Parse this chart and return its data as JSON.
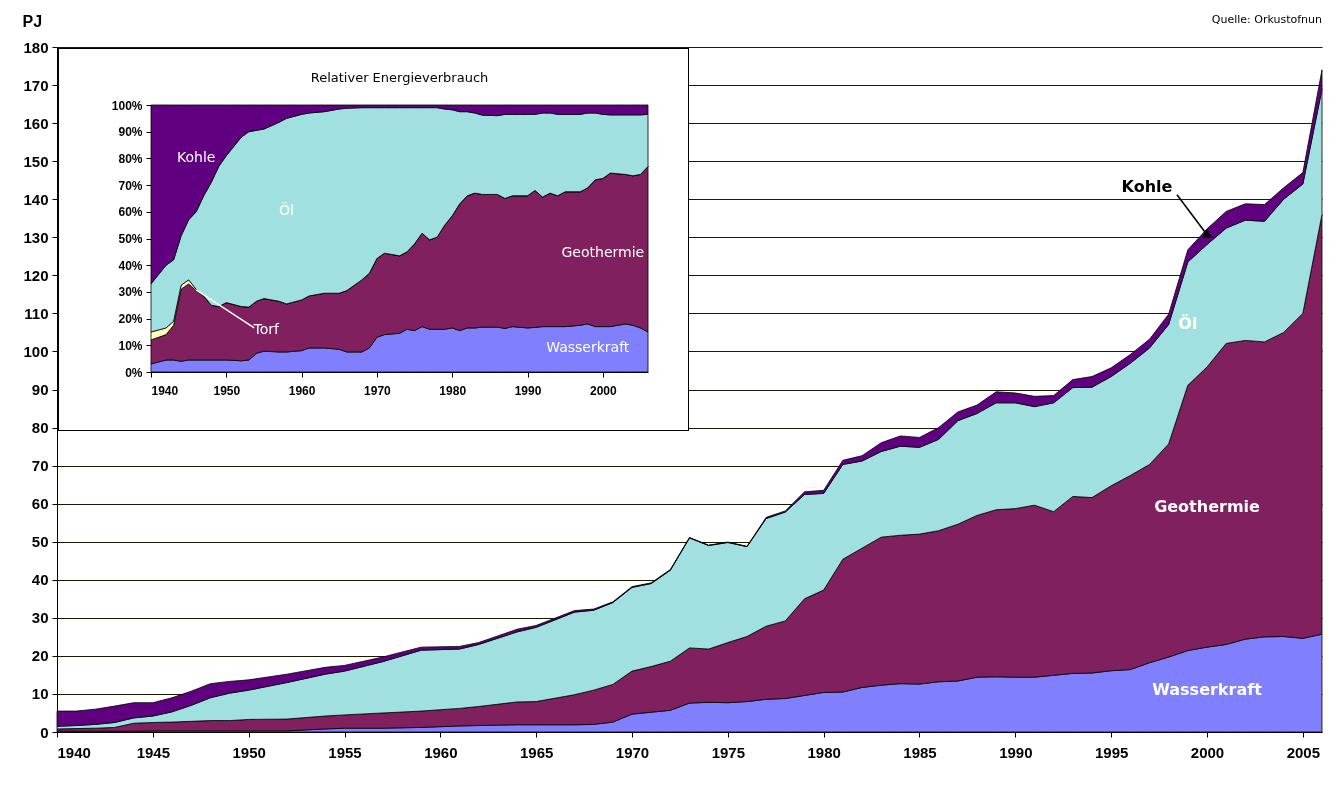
{
  "chart_data": [
    {
      "type": "area",
      "stacked": true,
      "ylabel": "PJ",
      "grid": "y",
      "annotations": [
        "Quelle: Orkustofnun"
      ],
      "x": [
        1940,
        1941,
        1942,
        1943,
        1944,
        1945,
        1946,
        1947,
        1948,
        1949,
        1950,
        1952,
        1954,
        1955,
        1957,
        1959,
        1961,
        1962,
        1964,
        1965,
        1967,
        1968,
        1969,
        1970,
        1971,
        1972,
        1973,
        1974,
        1975,
        1976,
        1977,
        1978,
        1979,
        1980,
        1981,
        1982,
        1983,
        1984,
        1985,
        1986,
        1987,
        1988,
        1989,
        1990,
        1991,
        1992,
        1993,
        1994,
        1995,
        1996,
        1997,
        1998,
        1999,
        2000,
        2001,
        2002,
        2003,
        2004,
        2005,
        2006
      ],
      "xlim": [
        1940,
        2006
      ],
      "xticks": [
        1940,
        1945,
        1950,
        1955,
        1960,
        1965,
        1970,
        1975,
        1980,
        1985,
        1990,
        1995,
        2000,
        2005
      ],
      "ylim": [
        0,
        180
      ],
      "yticks": [
        0,
        10,
        20,
        30,
        40,
        50,
        60,
        70,
        80,
        90,
        100,
        110,
        120,
        130,
        140,
        150,
        160,
        170,
        180
      ],
      "series": [
        {
          "name": "Wasserkraft",
          "color": "#8080ff",
          "values": [
            0.2,
            0.2,
            0.2,
            0.2,
            0.2,
            0.3,
            0.3,
            0.3,
            0.3,
            0.3,
            0.3,
            0.3,
            0.8,
            1.0,
            1.0,
            1.2,
            1.6,
            1.7,
            1.9,
            1.9,
            1.9,
            2.0,
            2.6,
            4.7,
            5.2,
            5.7,
            7.6,
            7.8,
            7.7,
            8.0,
            8.6,
            8.8,
            9.6,
            10.4,
            10.5,
            11.7,
            12.3,
            12.7,
            12.6,
            13.2,
            13.4,
            14.4,
            14.5,
            14.4,
            14.4,
            14.9,
            15.4,
            15.5,
            16.1,
            16.4,
            18.2,
            19.7,
            21.4,
            22.3,
            23.0,
            24.4,
            25.0,
            25.1,
            24.6,
            25.7
          ]
        },
        {
          "name": "Geothermie",
          "color": "#80205f",
          "values": [
            0.6,
            0.7,
            0.8,
            1.0,
            2.1,
            2.2,
            2.3,
            2.5,
            2.7,
            2.7,
            3.0,
            3.1,
            3.4,
            3.5,
            4.0,
            4.3,
            4.6,
            5.0,
            6.0,
            6.1,
            7.9,
            9.0,
            9.9,
            11.3,
            12.0,
            12.9,
            14.5,
            14.0,
            15.8,
            17.1,
            19.2,
            20.4,
            25.4,
            26.9,
            34.9,
            36.6,
            38.9,
            39.0,
            39.4,
            39.7,
            41.2,
            42.5,
            43.9,
            44.3,
            45.2,
            43.0,
            46.5,
            46.1,
            48.6,
            51.0,
            52.1,
            56.0,
            69.7,
            73.6,
            79.1,
            78.5,
            77.5,
            79.9,
            85.4,
            110.3
          ]
        },
        {
          "name": "Öl",
          "color": "#a0e0e0",
          "values": [
            0.7,
            0.8,
            1.0,
            1.3,
            1.4,
            1.7,
            2.7,
            4.2,
            6.0,
            7.2,
            7.7,
            9.6,
            11.0,
            11.5,
            13.5,
            16.0,
            15.6,
            16.3,
            18.4,
            19.5,
            21.7,
            21.0,
            21.5,
            22.0,
            21.8,
            23.9,
            28.9,
            27.2,
            26.3,
            23.6,
            28.3,
            28.6,
            27.4,
            25.4,
            24.9,
            22.9,
            22.5,
            23.4,
            22.8,
            24.0,
            27.2,
            26.8,
            28.1,
            27.8,
            25.9,
            28.6,
            28.6,
            29.0,
            28.7,
            29.5,
            30.6,
            31.4,
            32.4,
            32.2,
            30.3,
            31.6,
            31.7,
            35.0,
            34.0,
            33.0
          ]
        },
        {
          "name": "Kohle",
          "color": "#600080",
          "values": [
            4.0,
            3.8,
            4.0,
            4.3,
            4.0,
            3.5,
            3.7,
            3.7,
            3.7,
            3.1,
            2.7,
            2.2,
            1.8,
            1.5,
            1.2,
            0.8,
            0.7,
            0.5,
            0.7,
            0.5,
            0.4,
            0.3,
            0.2,
            0.2,
            0.2,
            0.2,
            0.1,
            0.1,
            0.1,
            0.1,
            0.3,
            0.3,
            0.7,
            0.8,
            1.1,
            1.4,
            2.3,
            2.7,
            2.6,
            3.1,
            2.3,
            2.2,
            2.9,
            2.6,
            2.7,
            1.9,
            2.1,
            2.8,
            2.3,
            2.3,
            2.3,
            2.7,
            3.2,
            4.1,
            4.4,
            4.3,
            4.4,
            3.0,
            3.0,
            5.0
          ]
        }
      ]
    },
    {
      "type": "area",
      "stacked": true,
      "title": "Relativer Energieverbrauch",
      "x": [
        1940,
        1942,
        1943,
        1944,
        1945,
        1946,
        1947,
        1948,
        1949,
        1950,
        1952,
        1953,
        1954,
        1955,
        1957,
        1958,
        1960,
        1961,
        1963,
        1965,
        1966,
        1968,
        1969,
        1970,
        1971,
        1973,
        1974,
        1975,
        1976,
        1977,
        1978,
        1979,
        1980,
        1981,
        1982,
        1983,
        1984,
        1986,
        1987,
        1988,
        1990,
        1991,
        1992,
        1993,
        1994,
        1995,
        1997,
        1998,
        1999,
        2000,
        2001,
        2003,
        2004,
        2005,
        2006
      ],
      "xlim": [
        1940,
        2006
      ],
      "xticks": [
        1940,
        1950,
        1960,
        1970,
        1980,
        1990,
        2000
      ],
      "ylim": [
        0,
        100
      ],
      "yticks": [
        {
          "value": 0,
          "label": "0%"
        },
        {
          "value": 10,
          "label": "10%"
        },
        {
          "value": 20,
          "label": "20%"
        },
        {
          "value": 30,
          "label": "30%"
        },
        {
          "value": 40,
          "label": "40%"
        },
        {
          "value": 50,
          "label": "50%"
        },
        {
          "value": 60,
          "label": "60%"
        },
        {
          "value": 70,
          "label": "70%"
        },
        {
          "value": 80,
          "label": "80%"
        },
        {
          "value": 90,
          "label": "90%"
        },
        {
          "value": 100,
          "label": "100%"
        }
      ],
      "series": [
        {
          "name": "Wasserkraft",
          "color": "#8080ff",
          "values": [
            3,
            4.5,
            4.5,
            4,
            4.5,
            4.5,
            4.5,
            4.5,
            4.5,
            4.5,
            4.2,
            4.5,
            7,
            7.8,
            7.5,
            7.5,
            8,
            9,
            9,
            8.5,
            7.5,
            7.5,
            9,
            13,
            14,
            14.5,
            16,
            15.5,
            17,
            16,
            16,
            16,
            16.5,
            15.5,
            16.5,
            16.5,
            16.8,
            16.8,
            16.3,
            17,
            16.5,
            16.7,
            17,
            17,
            17,
            17,
            17.5,
            18,
            17,
            17,
            17,
            18,
            17.5,
            16.5,
            15
          ]
        },
        {
          "name": "Geothermie",
          "color": "#80205f",
          "values": [
            9,
            9.5,
            13,
            27,
            28.5,
            26,
            24,
            20.5,
            20,
            21.5,
            20.3,
            19.8,
            19.5,
            19.7,
            19,
            18,
            19,
            19.5,
            20.5,
            21,
            23,
            27,
            28,
            29.5,
            30.5,
            29,
            29,
            32.5,
            35,
            33.5,
            34.5,
            39,
            42,
            47.5,
            49.5,
            50.5,
            49.7,
            49.7,
            48.7,
            49,
            49.5,
            51.3,
            48.5,
            50,
            49,
            50.5,
            50,
            51,
            55,
            55.5,
            57.5,
            56,
            56,
            57.5,
            62
          ]
        },
        {
          "name": "Torf",
          "color": "#ffffc0",
          "values": [
            3,
            2.5,
            1.5,
            1.5,
            1.5,
            0.5,
            0,
            0,
            0,
            0,
            0,
            0,
            0,
            0,
            0,
            0,
            0,
            0,
            0,
            0,
            0,
            0,
            0,
            0,
            0,
            0,
            0,
            0,
            0,
            0,
            0,
            0,
            0,
            0,
            0,
            0,
            0,
            0,
            0,
            0,
            0,
            0,
            0,
            0,
            0,
            0,
            0,
            0,
            0,
            0,
            0,
            0,
            0,
            0,
            0
          ]
        },
        {
          "name": "Öl",
          "color": "#a0e0e0",
          "values": [
            18,
            23.5,
            23,
            18.5,
            22.5,
            29,
            37.5,
            46,
            52.5,
            55,
            63.5,
            65.7,
            64,
            63.5,
            67,
            69.5,
            69.5,
            68.5,
            68,
            69,
            68.3,
            64.5,
            62,
            56.5,
            54.5,
            55.5,
            54,
            51,
            47,
            49.5,
            48.5,
            43.5,
            39.7,
            34.5,
            31.5,
            30,
            29.7,
            29.5,
            31.5,
            30.5,
            30.5,
            28.5,
            31.5,
            30,
            30.5,
            29,
            29,
            28,
            25,
            24,
            21.8,
            22.3,
            22.8,
            22.3,
            19.5
          ]
        },
        {
          "name": "Kohle",
          "color": "#600080",
          "values": [
            67,
            60,
            58,
            49,
            43,
            40,
            34,
            29,
            23,
            19,
            12,
            10,
            9.5,
            9,
            6.5,
            5,
            3.5,
            3,
            2.5,
            1.5,
            1.2,
            1,
            1,
            1,
            1,
            1,
            1,
            1,
            1,
            1,
            1,
            1.5,
            1.8,
            2.5,
            2.5,
            3,
            3.8,
            4,
            3.5,
            3.5,
            3.5,
            3.5,
            3,
            3,
            3.5,
            3.5,
            3.5,
            3,
            3,
            3.5,
            3.7,
            3.7,
            3.7,
            3.7,
            3.5
          ]
        }
      ]
    }
  ]
}
